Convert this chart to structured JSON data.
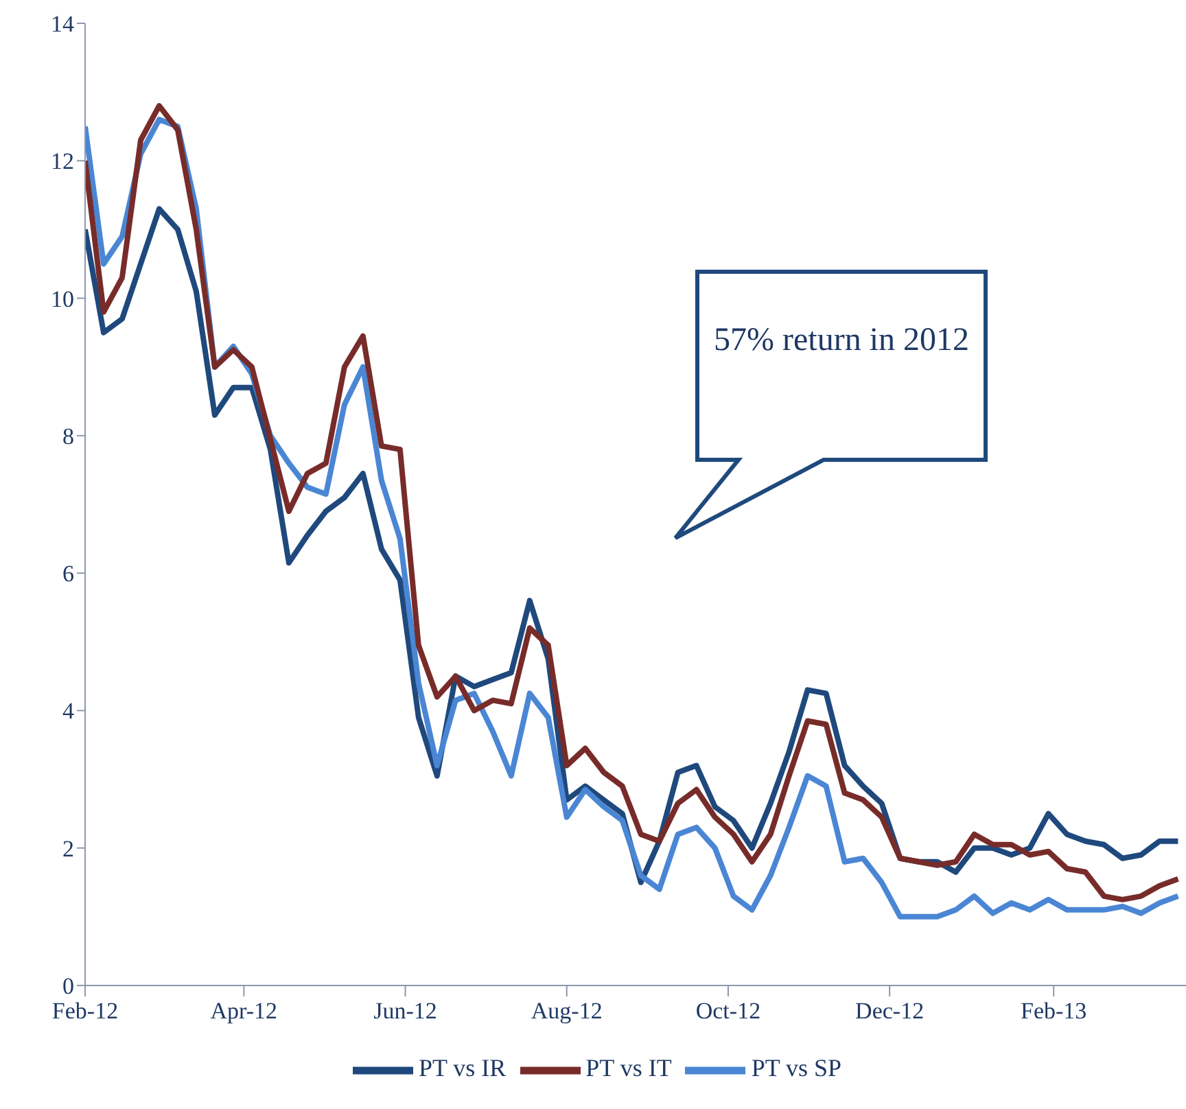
{
  "chart_data": {
    "type": "line",
    "x": [
      "2012-02-01",
      "2012-02-08",
      "2012-02-15",
      "2012-02-22",
      "2012-02-29",
      "2012-03-07",
      "2012-03-14",
      "2012-03-21",
      "2012-03-28",
      "2012-04-04",
      "2012-04-11",
      "2012-04-18",
      "2012-04-25",
      "2012-05-02",
      "2012-05-09",
      "2012-05-16",
      "2012-05-23",
      "2012-05-30",
      "2012-06-06",
      "2012-06-13",
      "2012-06-20",
      "2012-06-27",
      "2012-07-04",
      "2012-07-11",
      "2012-07-18",
      "2012-07-25",
      "2012-08-01",
      "2012-08-08",
      "2012-08-15",
      "2012-08-22",
      "2012-08-29",
      "2012-09-05",
      "2012-09-12",
      "2012-09-19",
      "2012-09-26",
      "2012-10-03",
      "2012-10-10",
      "2012-10-17",
      "2012-10-24",
      "2012-10-31",
      "2012-11-07",
      "2012-11-14",
      "2012-11-21",
      "2012-11-28",
      "2012-12-05",
      "2012-12-12",
      "2012-12-19",
      "2012-12-26",
      "2013-01-02",
      "2013-01-09",
      "2013-01-16",
      "2013-01-23",
      "2013-01-30",
      "2013-02-06",
      "2013-02-13",
      "2013-02-20",
      "2013-02-27",
      "2013-03-06",
      "2013-03-13",
      "2013-03-20"
    ],
    "series": [
      {
        "name": "PT vs IR",
        "color": "#1f497d",
        "values": [
          11.0,
          9.5,
          9.7,
          10.5,
          11.3,
          11.0,
          10.1,
          8.3,
          8.7,
          8.7,
          7.8,
          6.15,
          6.55,
          6.9,
          7.1,
          7.45,
          6.35,
          5.9,
          3.9,
          3.05,
          4.5,
          4.35,
          4.45,
          4.55,
          5.6,
          4.75,
          2.7,
          2.9,
          2.7,
          2.5,
          1.5,
          2.1,
          3.1,
          3.2,
          2.6,
          2.4,
          2.0,
          2.65,
          3.4,
          4.3,
          4.25,
          3.2,
          2.9,
          2.65,
          1.85,
          1.8,
          1.8,
          1.65,
          2.0,
          2.0,
          1.9,
          2.0,
          2.5,
          2.2,
          2.1,
          2.05,
          1.85,
          1.9,
          2.1,
          2.1
        ]
      },
      {
        "name": "PT vs SP",
        "color": "#4a86d4",
        "values": [
          12.5,
          10.5,
          10.9,
          12.1,
          12.6,
          12.5,
          11.3,
          9.0,
          9.3,
          8.9,
          8.0,
          7.6,
          7.25,
          7.15,
          8.45,
          9.0,
          7.35,
          6.5,
          4.4,
          3.2,
          4.15,
          4.25,
          3.7,
          3.05,
          4.25,
          3.9,
          2.45,
          2.85,
          2.6,
          2.4,
          1.6,
          1.4,
          2.2,
          2.3,
          2.0,
          1.3,
          1.1,
          1.6,
          2.3,
          3.05,
          2.9,
          1.8,
          1.85,
          1.5,
          1.0,
          1.0,
          1.0,
          1.1,
          1.3,
          1.05,
          1.2,
          1.1,
          1.25,
          1.1,
          1.1,
          1.1,
          1.15,
          1.05,
          1.2,
          1.3
        ]
      },
      {
        "name": "PT vs IT",
        "color": "#772c2a",
        "values": [
          12.0,
          9.8,
          10.3,
          12.3,
          12.8,
          12.45,
          11.0,
          9.0,
          9.25,
          9.0,
          7.95,
          6.9,
          7.45,
          7.6,
          9.0,
          9.45,
          7.85,
          7.8,
          4.95,
          4.2,
          4.5,
          4.0,
          4.15,
          4.1,
          5.2,
          4.95,
          3.2,
          3.45,
          3.1,
          2.9,
          2.2,
          2.1,
          2.65,
          2.85,
          2.45,
          2.2,
          1.8,
          2.2,
          3.05,
          3.85,
          3.8,
          2.8,
          2.7,
          2.45,
          1.85,
          1.8,
          1.75,
          1.8,
          2.2,
          2.05,
          2.05,
          1.9,
          1.95,
          1.7,
          1.65,
          1.3,
          1.25,
          1.3,
          1.45,
          1.55
        ]
      }
    ],
    "xlim": [
      "2012-02-01",
      "2013-03-23"
    ],
    "xticks": [
      {
        "value": "2012-02-01",
        "label": "Feb-12"
      },
      {
        "value": "2012-04-01",
        "label": "Apr-12"
      },
      {
        "value": "2012-06-01",
        "label": "Jun-12"
      },
      {
        "value": "2012-08-01",
        "label": "Aug-12"
      },
      {
        "value": "2012-10-01",
        "label": "Oct-12"
      },
      {
        "value": "2012-12-01",
        "label": "Dec-12"
      },
      {
        "value": "2013-02-01",
        "label": "Feb-13"
      }
    ],
    "ylim": [
      0,
      14
    ],
    "yticks": [
      0,
      2,
      4,
      6,
      8,
      10,
      12,
      14
    ],
    "grid": false,
    "legend": "bottom",
    "marker": "none",
    "line_style": "solid",
    "annotations": [
      "57% return in 2012"
    ]
  }
}
